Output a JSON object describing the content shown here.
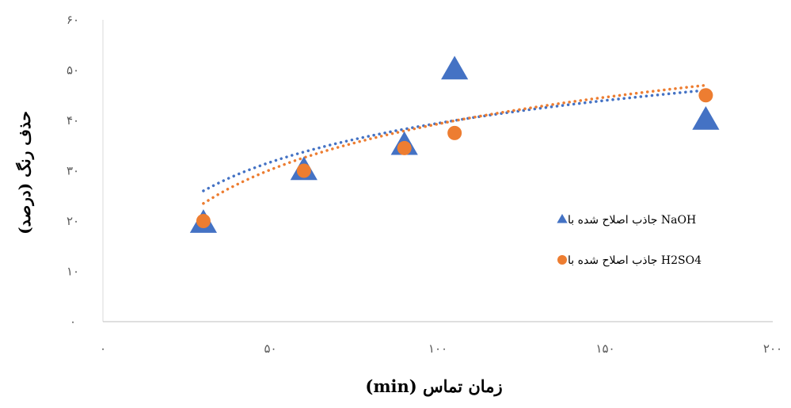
{
  "chart_data": {
    "type": "scatter",
    "xlabel": "زمان تماس (min)",
    "ylabel": "حذف رنگ (درصد)",
    "xlim": [
      0,
      200
    ],
    "ylim": [
      0,
      60
    ],
    "x_ticks": [
      0,
      50,
      100,
      150,
      200
    ],
    "y_ticks": [
      0,
      10,
      20,
      30,
      40,
      50,
      60
    ],
    "x_tick_labels": [
      "۰",
      "۵۰",
      "۱۰۰",
      "۱۵۰",
      "۲۰۰"
    ],
    "y_tick_labels": [
      "۰",
      "۱۰",
      "۲۰",
      "۳۰",
      "۴۰",
      "۵۰",
      "۶۰"
    ],
    "grid": false,
    "legend_position": "right",
    "series": [
      {
        "name": "جاذب اصلاح شده با NaOH",
        "marker": "triangle",
        "color": "#4472C4",
        "x": [
          30,
          60,
          90,
          105,
          180
        ],
        "y": [
          19.5,
          30,
          35,
          50,
          40
        ],
        "trendline": {
          "type": "logarithmic",
          "from": 30,
          "to": 180,
          "y_start": 26,
          "y_end": 46
        }
      },
      {
        "name": "جاذب اصلاح شده با  H2SO4",
        "marker": "circle",
        "color": "#ED7D31",
        "x": [
          30,
          60,
          90,
          105,
          180
        ],
        "y": [
          20,
          30,
          34.5,
          37.5,
          45
        ],
        "trendline": {
          "type": "logarithmic",
          "from": 30,
          "to": 180,
          "y_start": 23.5,
          "y_end": 47
        }
      }
    ]
  }
}
